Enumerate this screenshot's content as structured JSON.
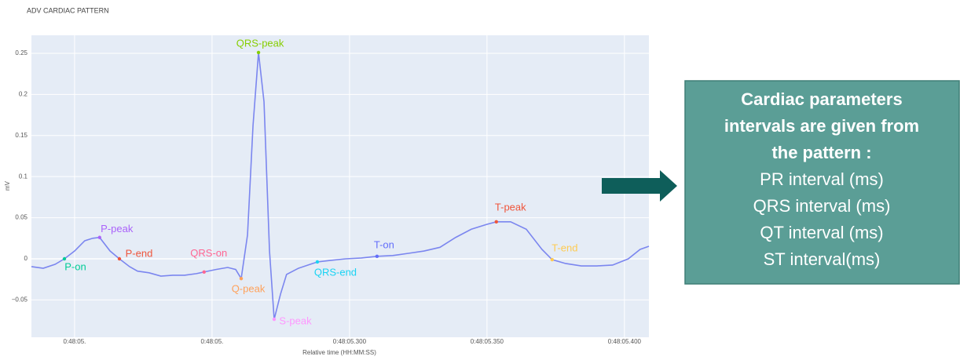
{
  "chart_data": {
    "type": "line",
    "title": "ADV CARDIAC PATTERN",
    "x_label": "Relative time (HH:MM:SS)",
    "y_label": "mV",
    "color": "#7b86ef",
    "x": [
      0.1843,
      0.1886,
      0.1929,
      0.1963,
      0.2,
      0.2037,
      0.2066,
      0.2091,
      0.2129,
      0.2163,
      0.22,
      0.2229,
      0.2271,
      0.2314,
      0.2357,
      0.24,
      0.2443,
      0.2471,
      0.2514,
      0.2557,
      0.2586,
      0.2606,
      0.2629,
      0.2649,
      0.2669,
      0.2689,
      0.2709,
      0.2726,
      0.2749,
      0.2771,
      0.2814,
      0.2857,
      0.2883,
      0.2929,
      0.2986,
      0.3043,
      0.31,
      0.3157,
      0.3214,
      0.3271,
      0.3329,
      0.3386,
      0.3443,
      0.35,
      0.3534,
      0.3586,
      0.3643,
      0.37,
      0.3737,
      0.3786,
      0.3843,
      0.39,
      0.3957,
      0.4014,
      0.4057,
      0.4089
    ],
    "values": [
      -0.0095,
      -0.0115,
      -0.0067,
      0,
      0.0095,
      0.022,
      0.025,
      0.026,
      0.0095,
      0,
      -0.0095,
      -0.015,
      -0.017,
      -0.021,
      -0.02,
      -0.02,
      -0.018,
      -0.016,
      -0.013,
      -0.0105,
      -0.013,
      -0.024,
      0.029,
      0.162,
      0.251,
      0.191,
      0.0095,
      -0.0735,
      -0.043,
      -0.019,
      -0.0115,
      -0.0067,
      -0.0038,
      -0.002,
      0,
      0.001,
      0.003,
      0.004,
      0.0067,
      0.0095,
      0.014,
      0.026,
      0.036,
      0.042,
      0.045,
      0.045,
      0.036,
      0.0115,
      -0.001,
      -0.0057,
      -0.0086,
      -0.0086,
      -0.0076,
      0,
      0.0115,
      0.0153
    ],
    "markers": [
      {
        "name": "P-on",
        "color": "#00cc96",
        "x": 0.1963,
        "y": 0
      },
      {
        "name": "P-peak",
        "color": "#ab63fa",
        "x": 0.2091,
        "y": 0.026
      },
      {
        "name": "P-end",
        "color": "#ef553b",
        "x": 0.2163,
        "y": 0
      },
      {
        "name": "QRS-on",
        "color": "#ff6692",
        "x": 0.2471,
        "y": -0.016
      },
      {
        "name": "Q-peak",
        "color": "#ffa15a",
        "x": 0.2606,
        "y": -0.024
      },
      {
        "name": "QRS-peak",
        "color": "#86ce00",
        "x": 0.2669,
        "y": 0.251
      },
      {
        "name": "S-peak",
        "color": "#ff97ff",
        "x": 0.2726,
        "y": -0.0735
      },
      {
        "name": "QRS-end",
        "color": "#19d3f3",
        "x": 0.2883,
        "y": -0.0038
      },
      {
        "name": "T-on",
        "color": "#636efa",
        "x": 0.31,
        "y": 0.003
      },
      {
        "name": "T-peak",
        "color": "#ef553b",
        "x": 0.3534,
        "y": 0.045
      },
      {
        "name": "T-end",
        "color": "#fecb52",
        "x": 0.3737,
        "y": -0.001
      }
    ],
    "xlim": [
      0.1843,
      0.4089
    ],
    "xticks": [
      {
        "value": 0.2,
        "label": "0:48:05."
      },
      {
        "value": 0.25,
        "label": "0:48:05."
      },
      {
        "value": 0.3,
        "label": "0:48:05.300"
      },
      {
        "value": 0.35,
        "label": "0:48:05.350"
      },
      {
        "value": 0.4,
        "label": "0:48:05.400"
      }
    ],
    "ylim": [
      -0.0954,
      0.2719
    ],
    "yticks": [
      {
        "value": -0.05,
        "label": "−0.05"
      },
      0,
      0.05,
      0.1,
      0.15,
      0.2,
      0.25
    ],
    "grid": true
  },
  "panel": {
    "heading": [
      "Cardiac parameters",
      "intervals are given from",
      "the pattern :"
    ],
    "items": [
      "PR interval (ms)",
      "QRS interval (ms)",
      "QT interval (ms)",
      "ST interval(ms)"
    ]
  }
}
